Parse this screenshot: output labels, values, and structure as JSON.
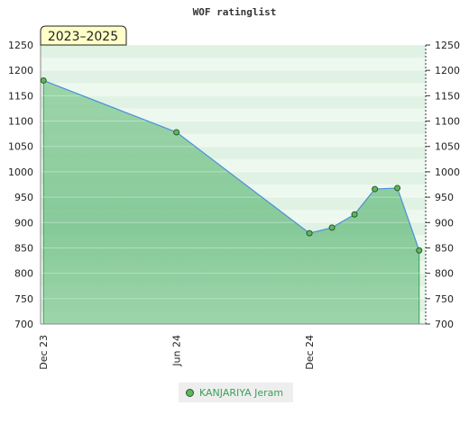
{
  "chart_data": {
    "type": "area",
    "title": "WOF ratinglist",
    "period_label": "2023–2025",
    "xlabel": "",
    "ylabel": "",
    "x_ticks": [
      "Dec 23",
      "Jun 24",
      "Dec 24"
    ],
    "x_tick_dates": [
      "2023-12-01",
      "2024-06-01",
      "2024-12-01"
    ],
    "xlim": [
      "2023-11-27",
      "2025-05-10"
    ],
    "ylim": [
      700,
      1250
    ],
    "y_ticks": [
      700,
      750,
      800,
      850,
      900,
      950,
      1000,
      1050,
      1100,
      1150,
      1200,
      1250
    ],
    "grid": true,
    "legend_position": "bottom-center",
    "series": [
      {
        "name": "KANJARIYA Jeram",
        "x": [
          "2023-12-01",
          "2024-06-01",
          "2024-12-01",
          "2025-01-01",
          "2025-02-01",
          "2025-03-01",
          "2025-04-01",
          "2025-05-01"
        ],
        "values": [
          1180,
          1078,
          879,
          890,
          916,
          966,
          968,
          845
        ]
      }
    ],
    "colors": {
      "line": "#4a90d9",
      "area": "#5cb85c",
      "point_fill": "#5cb85c",
      "point_stroke": "#2d572d",
      "badge_fill": "#ffffc8",
      "legend_text": "#3c9f5c"
    }
  }
}
